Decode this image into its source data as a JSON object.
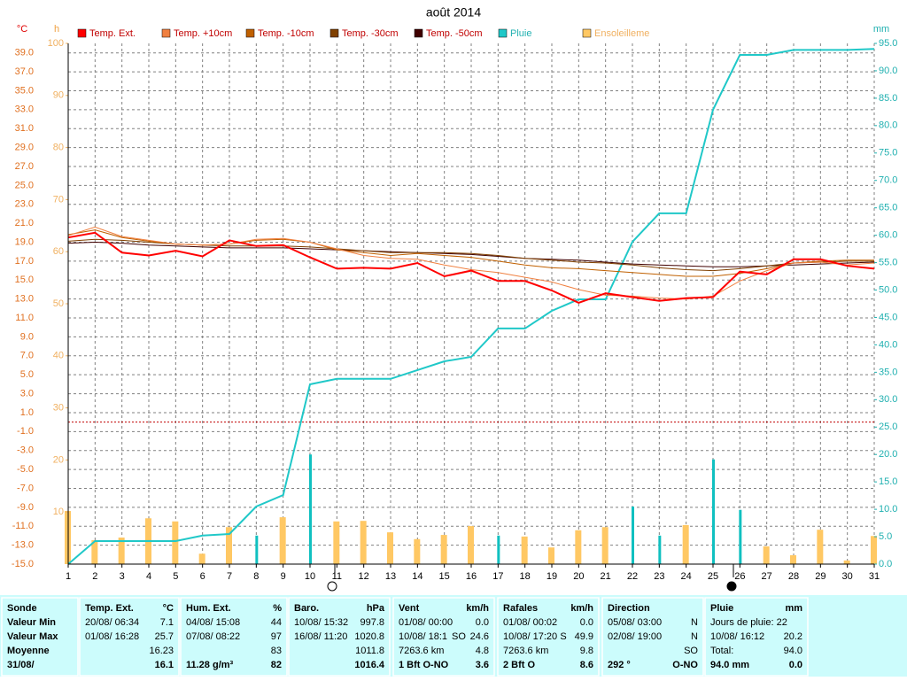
{
  "chart_data": {
    "type": "line",
    "title": "août 2014",
    "ylabel": "°C",
    "y2label": "mm",
    "y3label": "h",
    "x": [
      1,
      2,
      3,
      4,
      5,
      6,
      7,
      8,
      9,
      10,
      11,
      12,
      13,
      14,
      15,
      16,
      17,
      18,
      19,
      20,
      21,
      22,
      23,
      24,
      25,
      26,
      27,
      28,
      29,
      30,
      31
    ],
    "xlim": [
      1,
      31
    ],
    "xticks": [
      1,
      2,
      3,
      4,
      5,
      6,
      7,
      8,
      9,
      10,
      11,
      12,
      13,
      14,
      15,
      16,
      17,
      18,
      19,
      20,
      21,
      22,
      23,
      24,
      25,
      26,
      27,
      28,
      29,
      30,
      31
    ],
    "ylim": [
      -15,
      40
    ],
    "yticks": [
      {
        "value": -15,
        "label": "-15.0"
      },
      {
        "value": -13,
        "label": "-13.0"
      },
      {
        "value": -11,
        "label": "-11.0"
      },
      {
        "value": -9,
        "label": "-9.0"
      },
      {
        "value": -7,
        "label": "-7.0"
      },
      {
        "value": -5,
        "label": "-5.0"
      },
      {
        "value": -3,
        "label": "-3.0"
      },
      {
        "value": -1,
        "label": "-1.0"
      },
      {
        "value": 1,
        "label": "1.0"
      },
      {
        "value": 3,
        "label": "3.0"
      },
      {
        "value": 5,
        "label": "5.0"
      },
      {
        "value": 7,
        "label": "7.0"
      },
      {
        "value": 9,
        "label": "9.0"
      },
      {
        "value": 11,
        "label": "11.0"
      },
      {
        "value": 13,
        "label": "13.0"
      },
      {
        "value": 15,
        "label": "15.0"
      },
      {
        "value": 17,
        "label": "17.0"
      },
      {
        "value": 19,
        "label": "19.0"
      },
      {
        "value": 21,
        "label": "21.0"
      },
      {
        "value": 23,
        "label": "23.0"
      },
      {
        "value": 25,
        "label": "25.0"
      },
      {
        "value": 27,
        "label": "27.0"
      },
      {
        "value": 29,
        "label": "29.0"
      },
      {
        "value": 31,
        "label": "31.0"
      },
      {
        "value": 33,
        "label": "33.0"
      },
      {
        "value": 35,
        "label": "35.0"
      },
      {
        "value": 37,
        "label": "37.0"
      },
      {
        "value": 39,
        "label": "39.0"
      }
    ],
    "y2lim": [
      0,
      95
    ],
    "y2ticks": [
      {
        "value": 0,
        "label": "0.0"
      },
      {
        "value": 5,
        "label": "5.0"
      },
      {
        "value": 10,
        "label": "10.0"
      },
      {
        "value": 15,
        "label": "15.0"
      },
      {
        "value": 20,
        "label": "20.0"
      },
      {
        "value": 25,
        "label": "25.0"
      },
      {
        "value": 30,
        "label": "30.0"
      },
      {
        "value": 35,
        "label": "35.0"
      },
      {
        "value": 40,
        "label": "40.0"
      },
      {
        "value": 45,
        "label": "45.0"
      },
      {
        "value": 50,
        "label": "50.0"
      },
      {
        "value": 55,
        "label": "55.0"
      },
      {
        "value": 60,
        "label": "60.0"
      },
      {
        "value": 65,
        "label": "65.0"
      },
      {
        "value": 70,
        "label": "70.0"
      },
      {
        "value": 75,
        "label": "75.0"
      },
      {
        "value": 80,
        "label": "80.0"
      },
      {
        "value": 85,
        "label": "85.0"
      },
      {
        "value": 90,
        "label": "90.0"
      },
      {
        "value": 95,
        "label": "95.0"
      }
    ],
    "y3lim": [
      0,
      100
    ],
    "y3ticks": [
      10,
      20,
      30,
      40,
      50,
      60,
      70,
      80,
      90,
      100
    ],
    "grid": true,
    "hlines": [
      {
        "value": 0,
        "color": "#c00000"
      }
    ],
    "series": [
      {
        "name": "Temp. Ext.",
        "color": "#ff0000",
        "values": [
          19.5,
          20.0,
          17.9,
          17.6,
          18.1,
          17.5,
          19.2,
          18.6,
          18.7,
          17.4,
          16.2,
          16.3,
          16.2,
          16.8,
          15.4,
          16.0,
          14.9,
          14.9,
          13.9,
          12.6,
          13.6,
          13.2,
          12.8,
          13.1,
          13.2,
          15.9,
          15.6,
          17.2,
          17.2,
          16.5,
          16.2
        ]
      },
      {
        "name": "Temp. +10cm",
        "color": "#f08040",
        "values": [
          19.7,
          20.6,
          19.6,
          19.2,
          18.8,
          18.7,
          18.8,
          19.3,
          19.4,
          19.0,
          18.3,
          17.6,
          17.3,
          17.2,
          16.6,
          16.1,
          15.8,
          15.3,
          14.8,
          14.0,
          13.4,
          13.3,
          13.1,
          13.0,
          13.3,
          14.9,
          16.0,
          16.8,
          16.9,
          16.6,
          16.8
        ]
      },
      {
        "name": "Temp. -10cm",
        "color": "#c06000",
        "values": [
          19.8,
          20.3,
          19.5,
          19.1,
          18.8,
          18.7,
          18.8,
          19.2,
          19.3,
          19.0,
          18.2,
          17.9,
          17.6,
          17.8,
          17.6,
          17.4,
          17.0,
          16.6,
          16.3,
          16.2,
          16.0,
          15.8,
          15.6,
          15.4,
          15.4,
          15.7,
          16.2,
          16.8,
          17.0,
          17.1,
          17.1
        ]
      },
      {
        "name": "Temp. -30cm",
        "color": "#804000",
        "values": [
          19.1,
          19.3,
          19.2,
          19.0,
          18.8,
          18.7,
          18.6,
          18.6,
          18.6,
          18.5,
          18.3,
          18.1,
          17.9,
          17.9,
          17.9,
          17.8,
          17.6,
          17.3,
          17.1,
          16.9,
          16.8,
          16.6,
          16.3,
          16.1,
          16.0,
          16.2,
          16.5,
          16.8,
          16.9,
          17.0,
          17.0
        ]
      },
      {
        "name": "Temp. -50cm",
        "color": "#400000",
        "values": [
          18.9,
          19.0,
          18.9,
          18.7,
          18.6,
          18.5,
          18.4,
          18.4,
          18.4,
          18.3,
          18.2,
          18.1,
          18.0,
          17.9,
          17.8,
          17.7,
          17.5,
          17.3,
          17.2,
          17.1,
          16.9,
          16.7,
          16.6,
          16.5,
          16.4,
          16.4,
          16.5,
          16.6,
          16.7,
          16.8,
          16.9
        ]
      },
      {
        "name": "Pluie",
        "color": "#20c8c8",
        "axis": "y2",
        "values": [
          0,
          4.2,
          4.2,
          4.2,
          4.2,
          5.2,
          5.5,
          10.5,
          12.6,
          32.8,
          33.8,
          33.8,
          33.8,
          35.4,
          37.0,
          37.8,
          43.0,
          43.0,
          46.2,
          48.3,
          48.3,
          58.8,
          64.0,
          64.0,
          82.9,
          92.9,
          92.9,
          93.8,
          93.8,
          93.8,
          94.0
        ]
      },
      {
        "name": "Ensoleilleme",
        "color": "#ffc864",
        "axis": "y3",
        "type": "bar",
        "values": [
          10.2,
          4.6,
          5.1,
          8.8,
          8.2,
          2.0,
          7.1,
          0,
          9.0,
          0,
          8.2,
          8.3,
          6.1,
          4.8,
          5.6,
          7.3,
          0,
          5.3,
          3.2,
          6.5,
          7.1,
          0,
          0,
          7.5,
          0,
          0,
          3.4,
          1.7,
          6.6,
          0.7,
          5.4
        ]
      }
    ],
    "rain_bars": {
      "color": "#10c0c0",
      "axis": "y2",
      "values": [
        0,
        4.2,
        0,
        0,
        0,
        1.0,
        0.3,
        5.2,
        1.9,
        20.0,
        1.0,
        0,
        0,
        1.8,
        1.8,
        0.6,
        5.2,
        0.3,
        2.9,
        2.1,
        0,
        10.5,
        5.2,
        0,
        19.1,
        9.9,
        0,
        1.0,
        0,
        0,
        0
      ]
    }
  },
  "panels": [
    {
      "title": "Sonde",
      "rows": [
        {
          "left": "Valeur Min"
        },
        {
          "left": "Valeur Max"
        },
        {
          "left": "Moyenne"
        },
        {
          "left": "31/08/"
        }
      ]
    },
    {
      "title": "Temp. Ext.",
      "unit": "°C",
      "rows": [
        {
          "left": "20/08/ 06:34",
          "right": "7.1"
        },
        {
          "left": "01/08/ 16:28",
          "right": "25.7"
        },
        {
          "right": "16.23"
        },
        {
          "right": "16.1"
        }
      ]
    },
    {
      "title": "Hum. Ext.",
      "unit": "%",
      "rows": [
        {
          "left": "04/08/ 15:08",
          "right": "44"
        },
        {
          "left": "07/08/ 08:22",
          "right": "97"
        },
        {
          "right": "83"
        },
        {
          "left": "11.28 g/m³",
          "right": "82"
        }
      ]
    },
    {
      "title": "Baro.",
      "unit": "hPa",
      "rows": [
        {
          "left": "10/08/ 15:32",
          "right": "997.8"
        },
        {
          "left": "16/08/ 11:20",
          "right": "1020.8"
        },
        {
          "right": "1011.8"
        },
        {
          "right": "1016.4"
        }
      ]
    },
    {
      "title": "Vent",
      "unit": "km/h",
      "rows": [
        {
          "left": "01/08/ 00:00",
          "right": "0.0"
        },
        {
          "left": "10/08/ 18:1",
          "mid": "SO",
          "right": "24.6"
        },
        {
          "left": "7263.6 km",
          "right": "4.8"
        },
        {
          "left": "1 Bft O-NO",
          "right": "3.6"
        }
      ]
    },
    {
      "title": "Rafales",
      "unit": "km/h",
      "rows": [
        {
          "left": "01/08/ 00:02",
          "right": "0.0"
        },
        {
          "left": "10/08/ 17:20",
          "mid": "S",
          "right": "49.9"
        },
        {
          "left": "7263.6 km",
          "right": "9.8"
        },
        {
          "left": "2 Bft O",
          "right": "8.6"
        }
      ]
    },
    {
      "title": "Direction",
      "rows": [
        {
          "left": "05/08/ 03:00",
          "right": "N"
        },
        {
          "left": "02/08/ 19:00",
          "right": "N"
        },
        {
          "right": "SO"
        },
        {
          "left": "292 °",
          "right": "O-NO"
        }
      ]
    },
    {
      "title": "Pluie",
      "unit": "mm",
      "rows": [
        {
          "left": "Jours de pluie: 22"
        },
        {
          "left": "10/08/ 16:12",
          "right": "20.2"
        },
        {
          "left": "Total:",
          "right": "94.0"
        },
        {
          "left": "94.0 mm",
          "right": "0.0"
        }
      ]
    }
  ]
}
